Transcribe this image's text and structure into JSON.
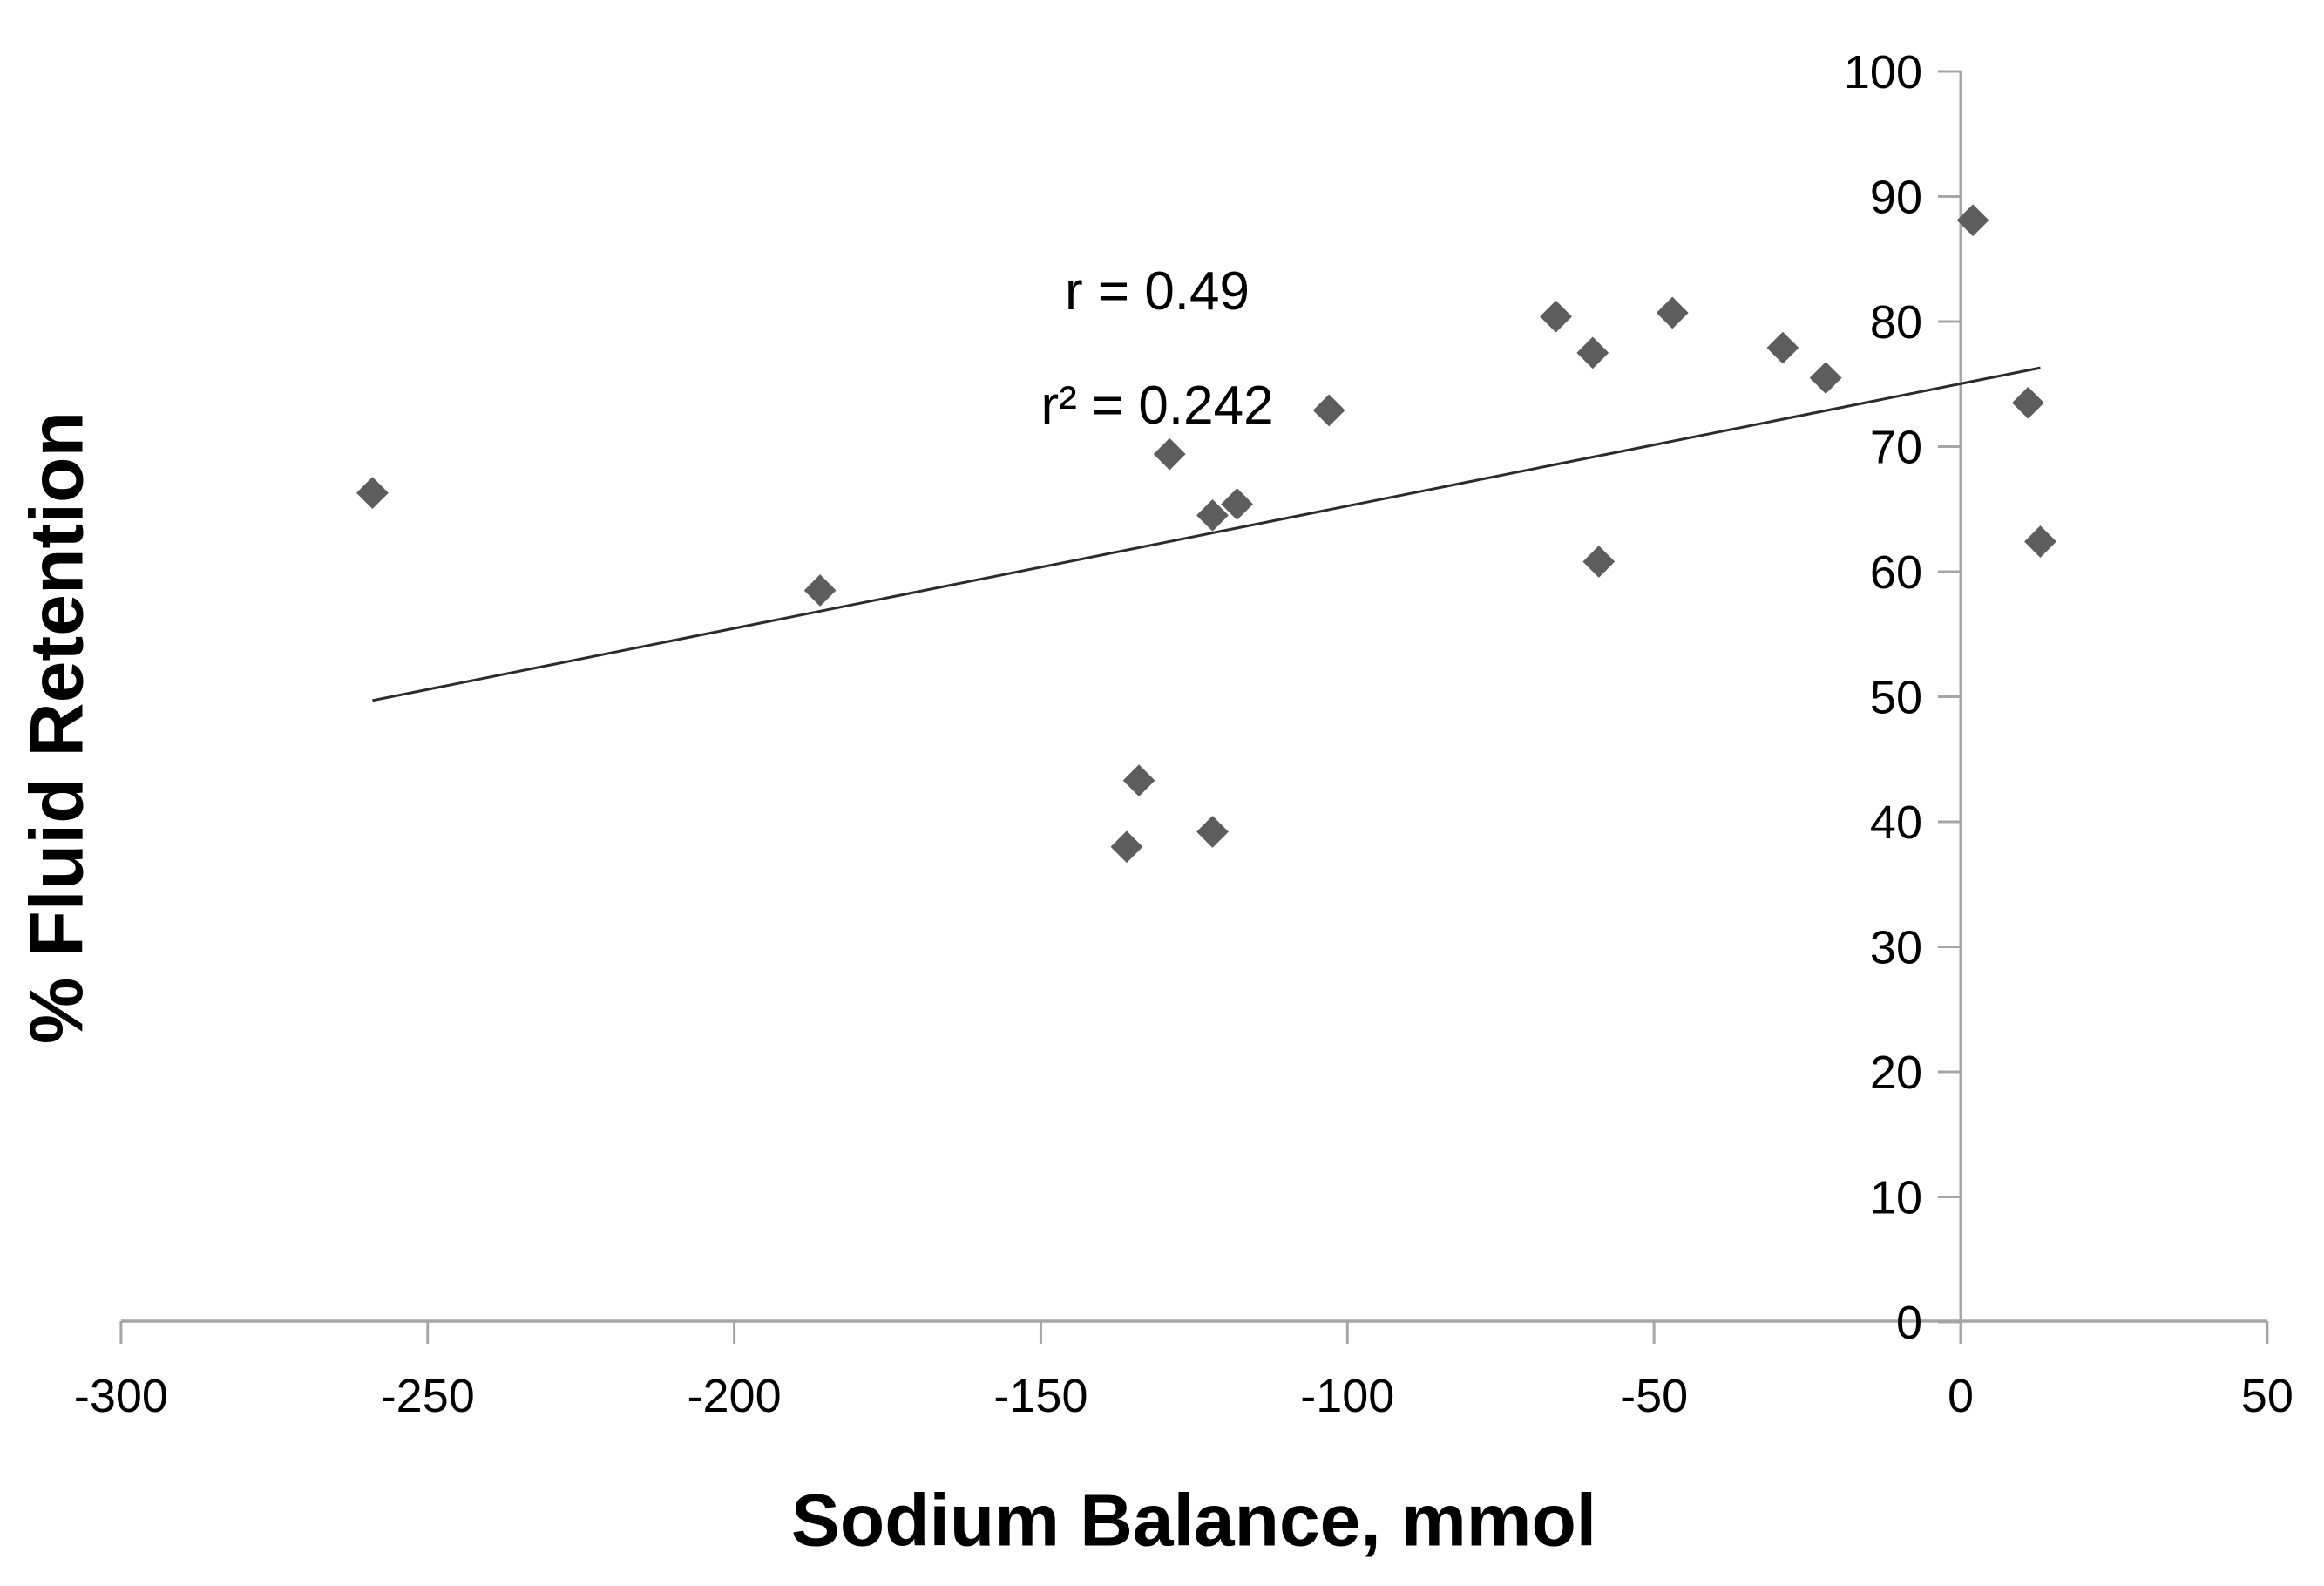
{
  "chart_data": {
    "type": "scatter",
    "title": "",
    "xlabel": "Sodium Balance, mmol",
    "ylabel": "% Fluid Retention",
    "annotation": {
      "line1": "r = 0.49",
      "line2": "r² = 0.242"
    },
    "xlim": [
      -300,
      50
    ],
    "ylim": [
      0,
      100
    ],
    "x_ticks": [
      -300,
      -250,
      -200,
      -150,
      -100,
      -50,
      0,
      50
    ],
    "y_ticks": [
      0,
      10,
      20,
      30,
      40,
      50,
      60,
      70,
      80,
      90,
      100
    ],
    "grid": false,
    "legend_position": "none",
    "marker_shape": "diamond",
    "points": [
      {
        "x": -259,
        "y": 66.3
      },
      {
        "x": -186,
        "y": 58.5
      },
      {
        "x": -136,
        "y": 38.0
      },
      {
        "x": -134,
        "y": 43.3
      },
      {
        "x": -129,
        "y": 69.4
      },
      {
        "x": -122,
        "y": 64.5
      },
      {
        "x": -122,
        "y": 39.2
      },
      {
        "x": -118,
        "y": 65.4
      },
      {
        "x": -103,
        "y": 72.9
      },
      {
        "x": -66,
        "y": 80.4
      },
      {
        "x": -60,
        "y": 77.5
      },
      {
        "x": -59,
        "y": 60.8
      },
      {
        "x": -47,
        "y": 80.7
      },
      {
        "x": -29,
        "y": 77.9
      },
      {
        "x": -22,
        "y": 75.5
      },
      {
        "x": 2,
        "y": 88.1
      },
      {
        "x": 11,
        "y": 73.5
      },
      {
        "x": 13,
        "y": 62.4
      }
    ],
    "trendline": {
      "x1": -259,
      "y1": 49.7,
      "x2": 13,
      "y2": 76.3
    },
    "colors": {
      "marker": "#5d5d5d",
      "axis": "#a6a6a6",
      "trend": "#2b2b2b",
      "text": "#000000",
      "background": "#ffffff"
    }
  }
}
